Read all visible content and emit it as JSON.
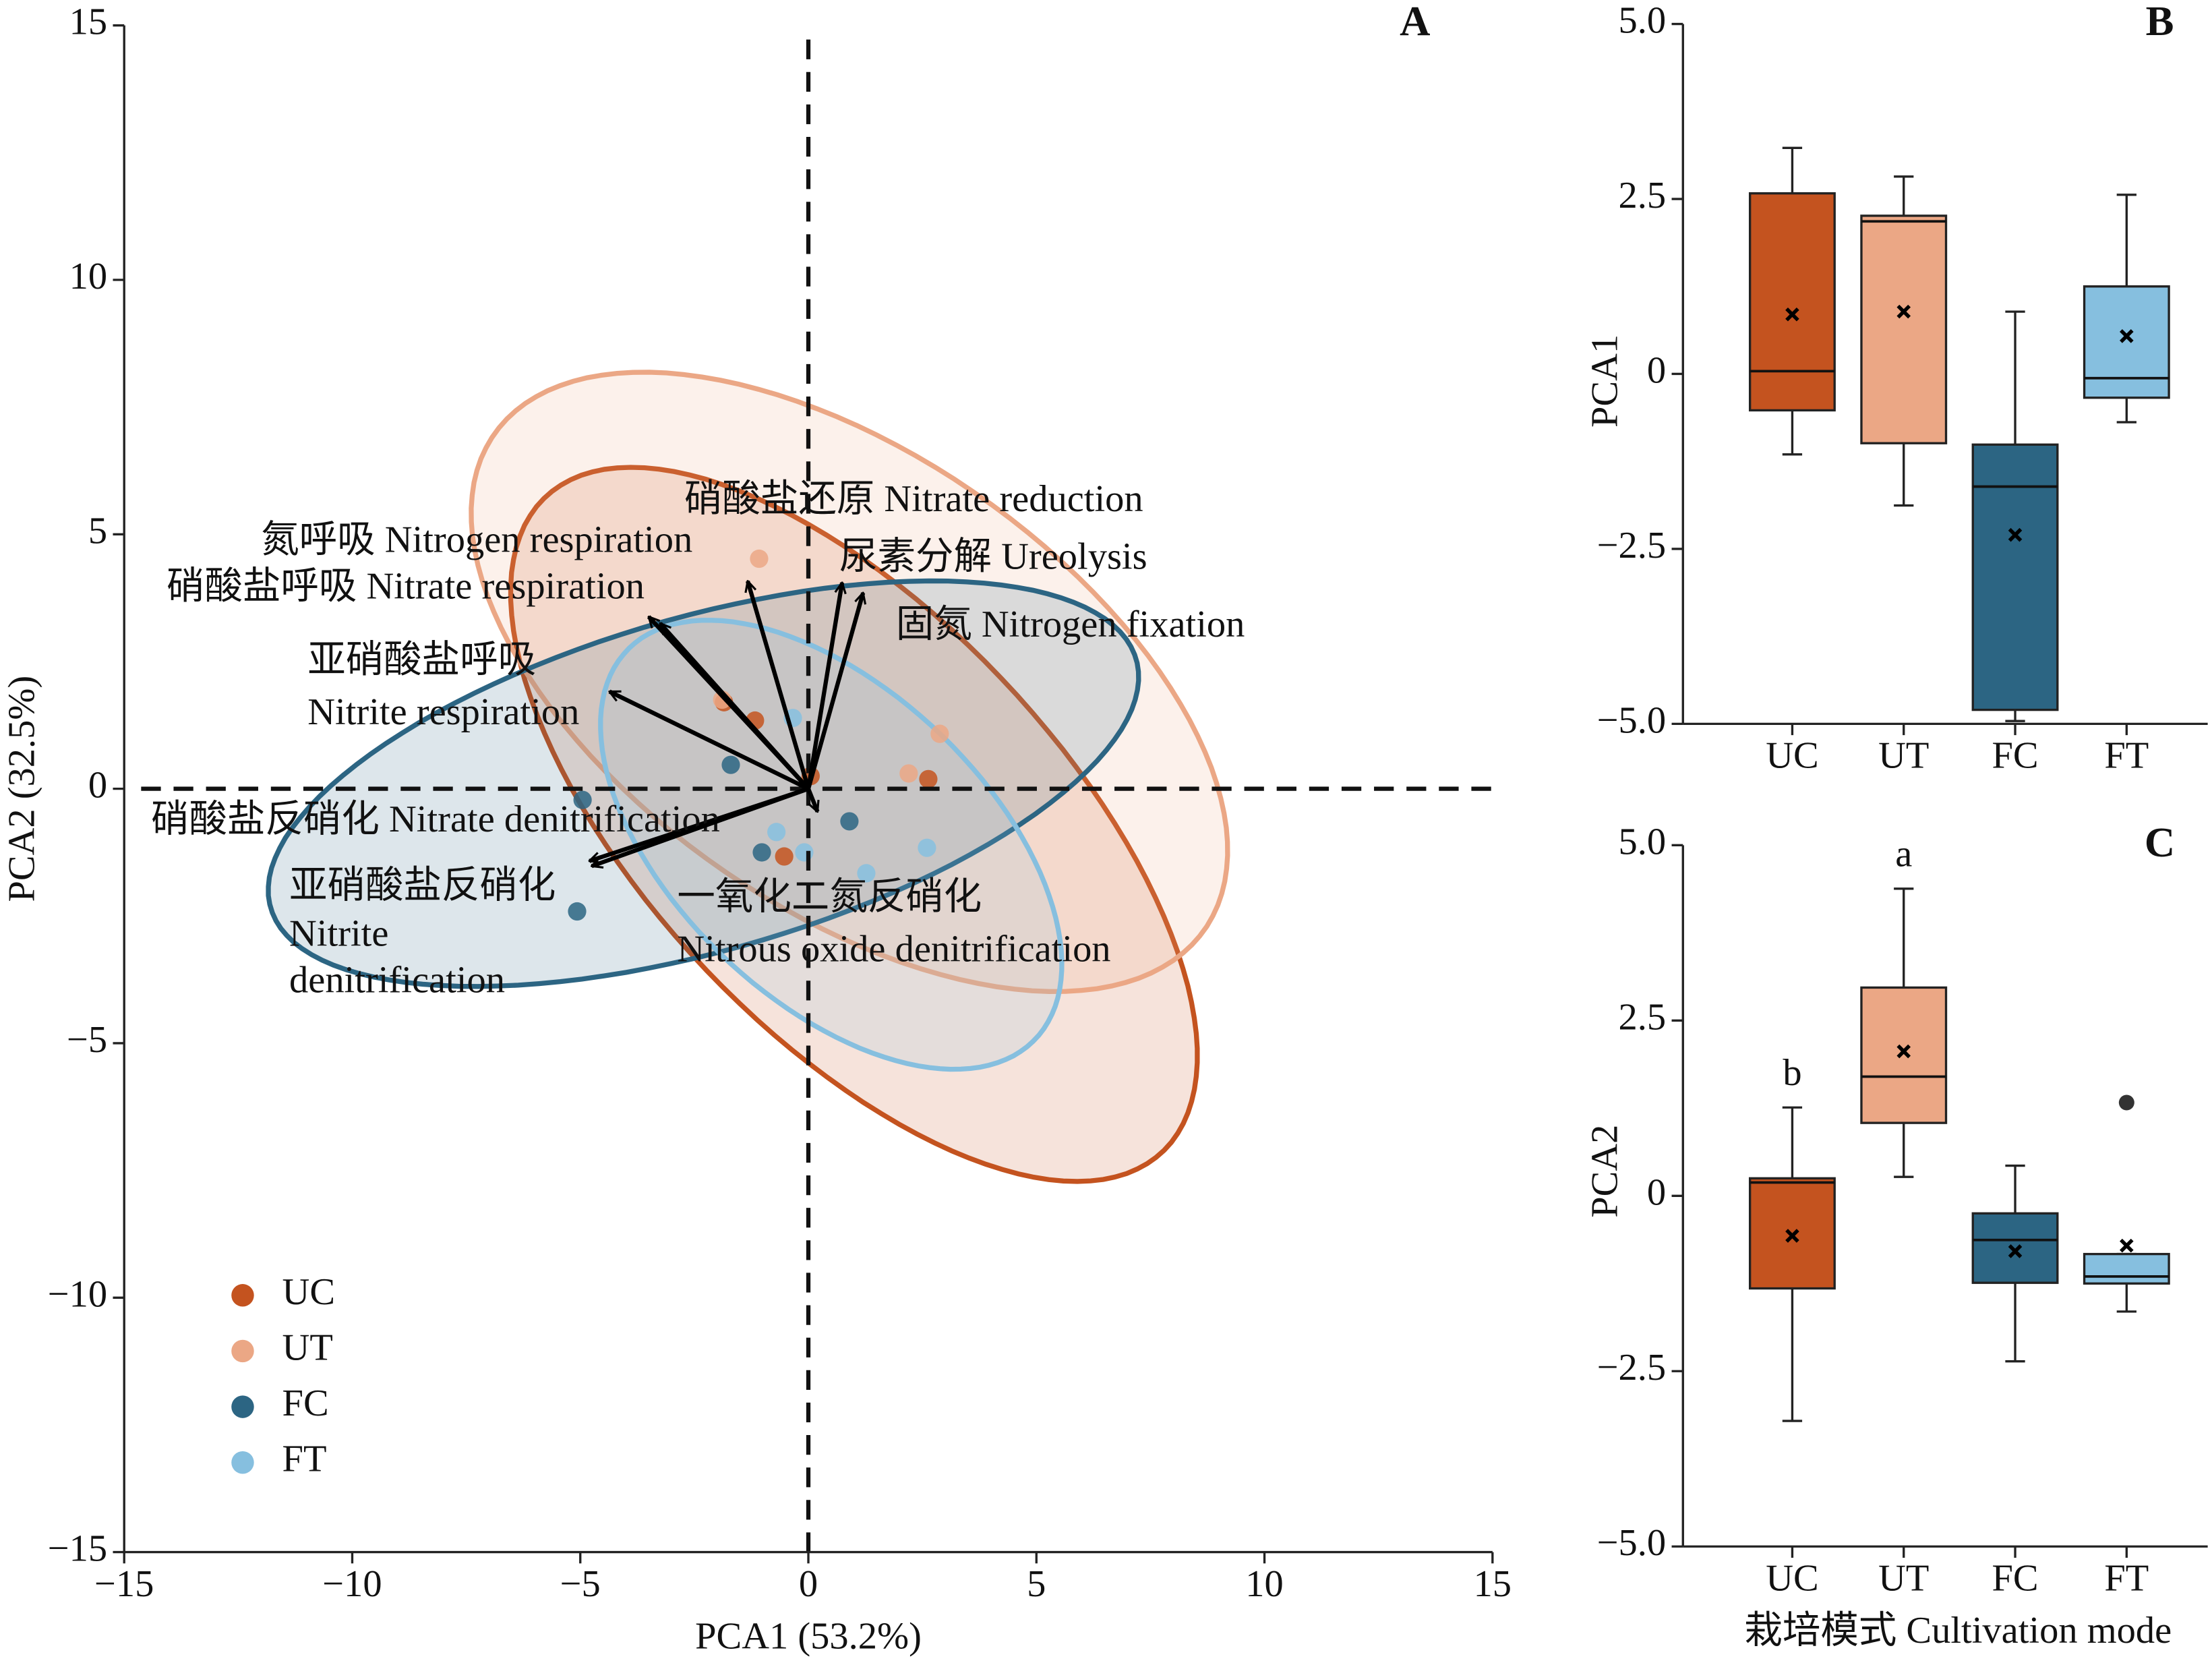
{
  "chart_data": [
    {
      "type": "scatter",
      "panel": "A",
      "xlabel": "PCA1 (53.2%)",
      "ylabel": "PCA2 (32.5%)",
      "xlim": [
        -15,
        15
      ],
      "ylim": [
        -15,
        15
      ],
      "xticks": [
        {
          "value": -15,
          "label": "−15"
        },
        {
          "value": -10,
          "label": "−10"
        },
        {
          "value": -5,
          "label": "−5"
        },
        0,
        5,
        10,
        15
      ],
      "yticks": [
        {
          "value": -15,
          "label": "−15"
        },
        {
          "value": -10,
          "label": "−10"
        },
        {
          "value": -5,
          "label": "−5"
        },
        0,
        5,
        10,
        15
      ],
      "zero_lines": true,
      "legend": "lower left",
      "series": [
        {
          "name": "UC",
          "color": "#c4531f",
          "x": [
            -1.17,
            -0.53,
            2.63,
            0.05,
            -1.85
          ],
          "y": [
            1.34,
            -1.33,
            0.19,
            0.25,
            1.7
          ],
          "ellipse": {
            "cx": 1.0,
            "cy": -0.7,
            "rx": 9.35,
            "ry": 4.3,
            "angle": -41.9
          }
        },
        {
          "name": "UT",
          "color": "#eba785",
          "x": [
            -1.08,
            2.88,
            2.2,
            -1.89
          ],
          "y": [
            4.52,
            1.08,
            0.3,
            1.75
          ],
          "ellipse": {
            "cx": 0.9,
            "cy": 2.1,
            "rx": 9.2,
            "ry": 4.6,
            "angle": -30
          }
        },
        {
          "name": "FC",
          "color": "#2c6583",
          "x": [
            -4.95,
            -5.07,
            -1.7,
            -1.02,
            0.9
          ],
          "y": [
            -0.22,
            -2.41,
            0.47,
            -1.25,
            -0.64
          ],
          "ellipse": {
            "cx": -2.3,
            "cy": 0.1,
            "rx": 9.8,
            "ry": 3.3,
            "angle": 14
          }
        },
        {
          "name": "FT",
          "color": "#86bfdf",
          "x": [
            -0.34,
            -0.09,
            1.27,
            2.6,
            -0.7
          ],
          "y": [
            1.39,
            -1.25,
            -1.66,
            -1.16,
            -0.85
          ],
          "ellipse": {
            "cx": 0.5,
            "cy": -1.1,
            "rx": 5.9,
            "ry": 3.2,
            "angle": -37.8
          }
        }
      ],
      "arrows": [
        {
          "label": [
            "氮呼吸 Nitrogen respiration"
          ],
          "x": -3.5,
          "y": 3.38
        },
        {
          "label": [
            "硝酸盐呼吸 Nitrate respiration"
          ],
          "x": -3.25,
          "y": 3.25
        },
        {
          "label": [
            "亚硝酸盐呼吸",
            "Nitrite respiration"
          ],
          "x": -4.36,
          "y": 1.91
        },
        {
          "label": [
            "硝酸盐还原 Nitrate reduction"
          ],
          "x": -1.33,
          "y": 4.08
        },
        {
          "label": [
            "尿素分解 Ureolysis"
          ],
          "x": 0.74,
          "y": 4.05
        },
        {
          "label": [
            "固氮 Nitrogen fixation"
          ],
          "x": 1.2,
          "y": 3.85
        },
        {
          "label": [
            "硝酸盐反硝化 Nitrate denitrification"
          ],
          "x": -4.8,
          "y": -1.42
        },
        {
          "label": [
            "亚硝酸盐反硝化",
            "Nitrite",
            "denitrification"
          ],
          "x": -4.75,
          "y": -1.52
        },
        {
          "label": [
            "一氧化二氮反硝化",
            "Nitrous oxide denitrification"
          ],
          "x": 0.2,
          "y": -0.45
        }
      ]
    },
    {
      "type": "box",
      "panel": "B",
      "ylabel": "PCA1",
      "categories": [
        "UC",
        "UT",
        "FC",
        "FT"
      ],
      "ylim": [
        -5,
        5
      ],
      "yticks": [
        {
          "value": -5,
          "label": "−5.0"
        },
        {
          "value": -2.5,
          "label": "−2.5"
        },
        0,
        {
          "value": 2.5,
          "label": "2.5"
        },
        {
          "value": 5,
          "label": "5.0"
        }
      ],
      "boxes": [
        {
          "color": "#c4531f",
          "whisker_low": -1.15,
          "q1": -0.52,
          "median": 0.04,
          "q3": 2.58,
          "whisker_high": 3.23,
          "mean": 0.85
        },
        {
          "color": "#eba785",
          "whisker_low": -1.88,
          "q1": -0.99,
          "median": 2.18,
          "q3": 2.26,
          "whisker_high": 2.82,
          "mean": 0.89
        },
        {
          "color": "#2c6583",
          "whisker_low": -4.96,
          "q1": -4.8,
          "median": -1.61,
          "q3": -1.01,
          "whisker_high": 0.89,
          "mean": -2.3
        },
        {
          "color": "#86bfdf",
          "whisker_low": -0.69,
          "q1": -0.34,
          "median": -0.06,
          "q3": 1.25,
          "whisker_high": 2.56,
          "mean": 0.54
        }
      ]
    },
    {
      "type": "box",
      "panel": "C",
      "ylabel": "PCA2",
      "xlabel": "栽培模式 Cultivation mode",
      "categories": [
        "UC",
        "UT",
        "FC",
        "FT"
      ],
      "ylim": [
        -5,
        5
      ],
      "yticks": [
        {
          "value": -5,
          "label": "−5.0"
        },
        {
          "value": -2.5,
          "label": "−2.5"
        },
        0,
        {
          "value": 2.5,
          "label": "2.5"
        },
        {
          "value": 5,
          "label": "5.0"
        }
      ],
      "boxes": [
        {
          "color": "#c4531f",
          "whisker_low": -3.21,
          "q1": -1.32,
          "median": 0.19,
          "q3": 0.25,
          "whisker_high": 1.26,
          "mean": -0.57,
          "letter": "b"
        },
        {
          "color": "#eba785",
          "whisker_low": 0.27,
          "q1": 1.04,
          "median": 1.7,
          "q3": 2.97,
          "whisker_high": 4.38,
          "mean": 2.06,
          "letter": "a"
        },
        {
          "color": "#2c6583",
          "whisker_low": -2.36,
          "q1": -1.24,
          "median": -0.63,
          "q3": -0.25,
          "whisker_high": 0.43,
          "mean": -0.79
        },
        {
          "color": "#86bfdf",
          "whisker_low": -1.65,
          "q1": -1.25,
          "median": -1.15,
          "q3": -0.83,
          "whisker_high": -0.83,
          "mean": -0.71,
          "outliers": [
            1.33
          ]
        }
      ]
    }
  ]
}
